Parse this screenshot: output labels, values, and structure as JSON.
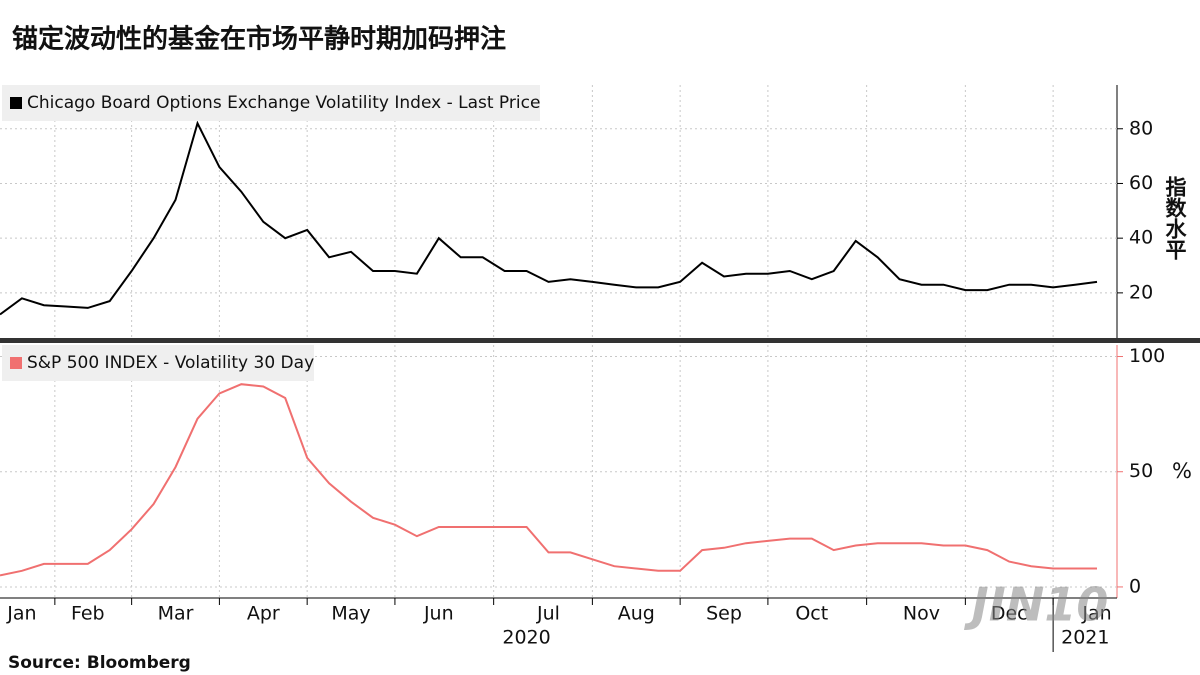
{
  "chart_data": [
    {
      "type": "line",
      "title": "锚定波动性的基金在市场平静时期加码押注",
      "y_label": "指数水平",
      "categories": [
        null,
        "Jan",
        null,
        null,
        "Feb",
        null,
        null,
        null,
        "Mar",
        null,
        null,
        null,
        "Apr",
        null,
        null,
        null,
        "May",
        null,
        null,
        null,
        "Jun",
        null,
        null,
        null,
        null,
        "Jul",
        null,
        null,
        null,
        "Aug",
        null,
        null,
        null,
        "Sep",
        null,
        null,
        null,
        "Oct",
        null,
        null,
        null,
        null,
        "Nov",
        null,
        null,
        null,
        "Dec",
        null,
        null,
        null,
        "Jan"
      ],
      "series": [
        {
          "name": "Chicago Board Options Exchange Volatility Index - Last Price",
          "color": "#000000",
          "values": [
            12.1,
            18,
            15.5,
            15,
            14.5,
            17,
            28,
            40,
            54,
            82,
            66,
            57,
            46,
            40,
            43,
            33,
            35,
            28,
            28,
            27,
            40,
            33,
            33,
            28,
            28,
            24,
            25,
            24,
            23,
            22,
            22,
            24,
            31,
            26,
            27,
            27,
            28,
            25,
            28,
            39,
            33,
            25,
            23,
            23,
            21,
            21,
            23,
            23,
            22,
            23,
            24
          ]
        }
      ],
      "ylim": [
        3.5,
        96
      ],
      "yticks": [
        20,
        40,
        60,
        80
      ],
      "grid": true
    },
    {
      "type": "line",
      "y_label": "%",
      "source": "Source:  Bloomberg",
      "watermark": "JIN10",
      "categories": [
        null,
        "Jan",
        null,
        null,
        "Feb",
        null,
        null,
        null,
        "Mar",
        null,
        null,
        null,
        "Apr",
        null,
        null,
        null,
        "May",
        null,
        null,
        null,
        "Jun",
        null,
        null,
        null,
        null,
        "Jul",
        null,
        null,
        null,
        "Aug",
        null,
        null,
        null,
        "Sep",
        null,
        null,
        null,
        "Oct",
        null,
        null,
        null,
        null,
        "Nov",
        null,
        null,
        null,
        "Dec",
        null,
        null,
        null,
        "Jan"
      ],
      "x_groups": [
        "2020",
        "2021"
      ],
      "series": [
        {
          "name": "S&P 500 INDEX - Volatility 30 Day",
          "color": "#f07070",
          "values": [
            5,
            7,
            10,
            10,
            10,
            16,
            25,
            36,
            52,
            73,
            84,
            88,
            87,
            82,
            56,
            45,
            37,
            30,
            27,
            22,
            26,
            26,
            26,
            26,
            26,
            15,
            15,
            12,
            9,
            8,
            7,
            7,
            16,
            17,
            19,
            20,
            21,
            21,
            16,
            18,
            19,
            19,
            19,
            18,
            18,
            16,
            11,
            9,
            8,
            8,
            8
          ]
        }
      ],
      "ylim": [
        -4.8,
        105
      ],
      "yticks": [
        0,
        50,
        100
      ],
      "grid": true
    }
  ]
}
